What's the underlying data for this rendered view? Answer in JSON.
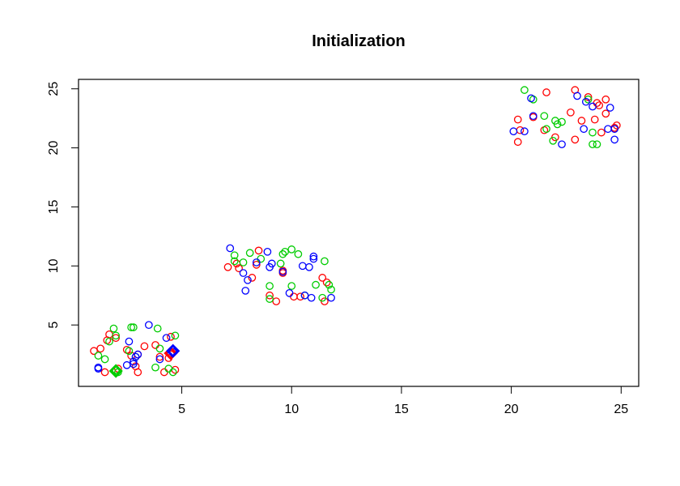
{
  "chart_data": {
    "type": "scatter",
    "title": "Initialization",
    "xlabel": "",
    "ylabel": "",
    "xlim": [
      0.3,
      25.8
    ],
    "ylim": [
      -0.2,
      25.8
    ],
    "x_ticks": [
      5,
      10,
      15,
      20,
      25
    ],
    "y_ticks": [
      5,
      10,
      15,
      20,
      25
    ],
    "x_tick_labels": [
      "5",
      "10",
      "15",
      "20",
      "25"
    ],
    "y_tick_labels": [
      "5",
      "10",
      "15",
      "20",
      "25"
    ],
    "grid": false,
    "legend": "none",
    "colors": {
      "red": "#ff0000",
      "green": "#00cc00",
      "blue": "#0000ff"
    },
    "series": [
      {
        "color": "red",
        "points": [
          [
            1.0,
            2.8
          ],
          [
            1.3,
            3.0
          ],
          [
            1.6,
            3.7
          ],
          [
            1.7,
            4.2
          ],
          [
            2.0,
            3.9
          ],
          [
            1.5,
            1.0
          ],
          [
            2.1,
            1.3
          ],
          [
            2.9,
            1.5
          ],
          [
            3.0,
            1.0
          ],
          [
            3.3,
            3.2
          ],
          [
            2.7,
            2.4
          ],
          [
            3.0,
            2.5
          ],
          [
            4.2,
            1.0
          ],
          [
            4.0,
            2.3
          ],
          [
            4.4,
            2.2
          ],
          [
            4.7,
            1.2
          ],
          [
            4.5,
            4.0
          ],
          [
            3.8,
            3.3
          ],
          [
            4.5,
            2.5
          ],
          [
            2.5,
            2.9
          ],
          [
            7.1,
            9.9
          ],
          [
            7.6,
            9.8
          ],
          [
            8.2,
            9.0
          ],
          [
            8.5,
            11.3
          ],
          [
            9.0,
            7.5
          ],
          [
            9.6,
            9.4
          ],
          [
            10.1,
            7.4
          ],
          [
            10.4,
            7.4
          ],
          [
            11.4,
            9.0
          ],
          [
            11.5,
            7.0
          ],
          [
            11.6,
            8.6
          ],
          [
            8.4,
            10.1
          ],
          [
            9.3,
            7.0
          ],
          [
            7.5,
            10.2
          ],
          [
            9.6,
            9.6
          ],
          [
            20.3,
            20.5
          ],
          [
            20.3,
            22.4
          ],
          [
            21.6,
            24.7
          ],
          [
            21.5,
            21.5
          ],
          [
            22.0,
            20.9
          ],
          [
            22.9,
            24.9
          ],
          [
            22.9,
            20.7
          ],
          [
            23.2,
            22.3
          ],
          [
            23.5,
            24.3
          ],
          [
            23.9,
            23.8
          ],
          [
            24.0,
            23.6
          ],
          [
            24.3,
            24.1
          ],
          [
            24.3,
            22.9
          ],
          [
            24.1,
            21.3
          ],
          [
            24.8,
            21.9
          ],
          [
            24.7,
            21.7
          ],
          [
            23.8,
            22.4
          ],
          [
            22.7,
            23.0
          ],
          [
            21.0,
            22.6
          ],
          [
            20.4,
            21.5
          ]
        ]
      },
      {
        "color": "green",
        "points": [
          [
            1.2,
            2.4
          ],
          [
            1.5,
            2.1
          ],
          [
            1.9,
            4.7
          ],
          [
            2.0,
            4.1
          ],
          [
            1.7,
            3.6
          ],
          [
            2.6,
            2.8
          ],
          [
            2.7,
            4.8
          ],
          [
            2.8,
            4.8
          ],
          [
            3.9,
            4.7
          ],
          [
            4.0,
            3.0
          ],
          [
            3.8,
            1.4
          ],
          [
            4.6,
            1.0
          ],
          [
            4.7,
            4.1
          ],
          [
            2.0,
            1.2
          ],
          [
            2.1,
            1.0
          ],
          [
            4.4,
            1.3
          ],
          [
            2.9,
            2.3
          ],
          [
            7.4,
            10.4
          ],
          [
            7.4,
            10.9
          ],
          [
            7.8,
            10.3
          ],
          [
            8.1,
            11.1
          ],
          [
            8.6,
            10.6
          ],
          [
            9.0,
            8.3
          ],
          [
            9.6,
            11.0
          ],
          [
            9.7,
            11.2
          ],
          [
            10.0,
            11.4
          ],
          [
            10.3,
            11.0
          ],
          [
            10.6,
            7.5
          ],
          [
            11.1,
            8.4
          ],
          [
            11.5,
            10.4
          ],
          [
            11.7,
            8.4
          ],
          [
            11.8,
            8.0
          ],
          [
            11.4,
            7.3
          ],
          [
            9.0,
            7.2
          ],
          [
            10.0,
            8.3
          ],
          [
            9.5,
            10.2
          ],
          [
            20.6,
            24.9
          ],
          [
            21.0,
            24.1
          ],
          [
            21.6,
            21.6
          ],
          [
            22.0,
            22.3
          ],
          [
            22.1,
            22.0
          ],
          [
            22.3,
            22.2
          ],
          [
            23.5,
            24.1
          ],
          [
            23.7,
            21.3
          ],
          [
            23.7,
            20.3
          ],
          [
            23.9,
            20.3
          ],
          [
            21.5,
            22.7
          ],
          [
            21.9,
            20.6
          ]
        ]
      },
      {
        "color": "blue",
        "points": [
          [
            1.2,
            1.4
          ],
          [
            1.2,
            1.3
          ],
          [
            2.5,
            1.6
          ],
          [
            2.8,
            1.7
          ],
          [
            2.8,
            1.9
          ],
          [
            2.9,
            2.3
          ],
          [
            3.0,
            2.5
          ],
          [
            3.5,
            5.0
          ],
          [
            4.0,
            2.1
          ],
          [
            4.3,
            3.9
          ],
          [
            4.5,
            2.6
          ],
          [
            4.6,
            2.7
          ],
          [
            2.6,
            3.6
          ],
          [
            7.2,
            11.5
          ],
          [
            7.8,
            9.4
          ],
          [
            7.9,
            7.9
          ],
          [
            8.0,
            8.8
          ],
          [
            8.4,
            10.3
          ],
          [
            8.9,
            11.2
          ],
          [
            9.0,
            9.9
          ],
          [
            9.1,
            10.2
          ],
          [
            9.6,
            9.5
          ],
          [
            9.9,
            7.7
          ],
          [
            10.5,
            10.0
          ],
          [
            10.8,
            9.9
          ],
          [
            11.0,
            10.6
          ],
          [
            11.0,
            10.8
          ],
          [
            11.8,
            7.3
          ],
          [
            10.6,
            7.5
          ],
          [
            10.9,
            7.3
          ],
          [
            20.1,
            21.4
          ],
          [
            20.6,
            21.4
          ],
          [
            20.9,
            24.2
          ],
          [
            21.0,
            22.7
          ],
          [
            22.3,
            20.3
          ],
          [
            23.0,
            24.4
          ],
          [
            23.3,
            21.6
          ],
          [
            23.4,
            23.9
          ],
          [
            23.7,
            23.5
          ],
          [
            24.4,
            21.6
          ],
          [
            24.5,
            23.4
          ],
          [
            24.7,
            20.7
          ],
          [
            24.7,
            21.6
          ]
        ]
      }
    ],
    "centers": [
      {
        "color": "green",
        "x": 2.0,
        "y": 1.1
      },
      {
        "color": "red",
        "x": 4.5,
        "y": 2.6
      },
      {
        "color": "blue",
        "x": 4.6,
        "y": 2.8
      }
    ]
  }
}
